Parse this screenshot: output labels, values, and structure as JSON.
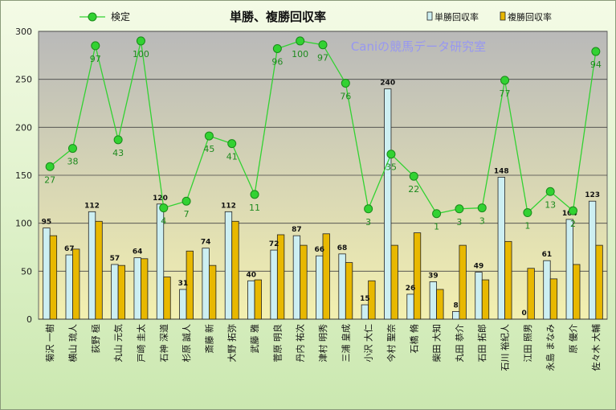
{
  "chart_data": {
    "type": "bar",
    "title": "単勝、複勝回収率",
    "watermark": "Caniの競馬データ研究室",
    "ylim": [
      0,
      300
    ],
    "yticks": [
      0,
      50,
      100,
      150,
      200,
      250,
      300
    ],
    "grid": true,
    "legend_position": "top",
    "line_legend": "検定",
    "categories": [
      "菊沢 一樹",
      "横山 琉人",
      "荻野 極",
      "丸山 元気",
      "戸崎 圭太",
      "石神 深道",
      "杉原 誠人",
      "斎藤 新",
      "大野 拓弥",
      "武藤 雅",
      "菅原 明良",
      "丹内 祐次",
      "津村 明秀",
      "三浦 皇成",
      "小沢 大仁",
      "今村 聖奈",
      "石橋 脩",
      "柴田 大知",
      "丸田 恭介",
      "石田 拓郎",
      "石川 裕紀人",
      "江田 照男",
      "永島 まなみ",
      "原 優介",
      "佐々木 大輔"
    ],
    "series": [
      {
        "name": "単勝回収率",
        "color": "#cdeff2",
        "values": [
          95,
          67,
          112,
          57,
          64,
          120,
          31,
          74,
          112,
          40,
          72,
          87,
          66,
          68,
          15,
          240,
          26,
          39,
          8,
          49,
          148,
          0,
          61,
          104,
          123
        ]
      },
      {
        "name": "複勝回収率",
        "color": "#e8b800",
        "values": [
          87,
          73,
          102,
          56,
          63,
          44,
          71,
          56,
          102,
          41,
          88,
          77,
          89,
          59,
          40,
          77,
          90,
          31,
          77,
          41,
          81,
          53,
          42,
          57,
          77
        ]
      }
    ],
    "line": {
      "name": "検定",
      "color": "#32d232",
      "values": [
        159,
        178,
        285,
        187,
        290,
        116,
        123,
        191,
        183,
        130,
        282,
        290,
        286,
        246,
        115,
        172,
        149,
        110,
        115,
        116,
        249,
        111,
        133,
        113,
        279
      ],
      "labels": [
        "27",
        "38",
        "97",
        "43",
        "100",
        "4",
        "7",
        "45",
        "41",
        "11",
        "96",
        "100",
        "97",
        "76",
        "3",
        "35",
        "22",
        "1",
        "3",
        "3",
        "77",
        "1",
        "13",
        "2",
        "94"
      ]
    }
  }
}
